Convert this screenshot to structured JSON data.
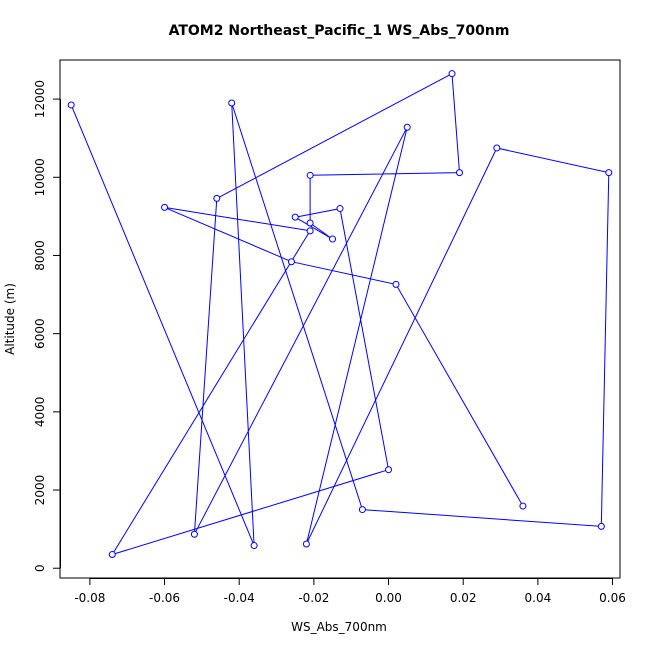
{
  "chart_data": {
    "type": "line",
    "title": "ATOM2 Northeast_Pacific_1 WS_Abs_700nm",
    "xlabel": "WS_Abs_700nm",
    "ylabel": "Altitude (m)",
    "xlim": [
      -0.088,
      0.062
    ],
    "ylim": [
      -250,
      13000
    ],
    "x_ticks": [
      -0.08,
      -0.06,
      -0.04,
      -0.02,
      0.0,
      0.02,
      0.04,
      0.06
    ],
    "x_tick_labels": [
      "-0.08",
      "-0.06",
      "-0.04",
      "-0.02",
      "0.00",
      "0.02",
      "0.04",
      "0.06"
    ],
    "y_ticks": [
      0,
      2000,
      4000,
      6000,
      8000,
      10000,
      12000
    ],
    "y_tick_labels": [
      "0",
      "2000",
      "4000",
      "6000",
      "8000",
      "10000",
      "12000"
    ],
    "grid": false,
    "legend": "none",
    "series_color": "#0000ff",
    "marker": "open-circle",
    "series": [
      {
        "x": [
          -0.085,
          -0.036,
          -0.042,
          -0.007,
          0.057,
          0.059,
          0.029,
          -0.022,
          0.005,
          -0.052,
          -0.046,
          0.017,
          0.019,
          -0.021,
          -0.021,
          -0.015,
          -0.025,
          -0.013,
          0.0,
          -0.074,
          -0.021,
          -0.06,
          -0.026,
          0.002,
          0.036
        ],
        "y": [
          11850,
          580,
          11900,
          1500,
          1070,
          10120,
          10750,
          620,
          11280,
          870,
          9460,
          12650,
          10120,
          10050,
          8830,
          8420,
          8980,
          9200,
          2520,
          350,
          8630,
          9230,
          7840,
          7260,
          1590
        ]
      }
    ]
  }
}
